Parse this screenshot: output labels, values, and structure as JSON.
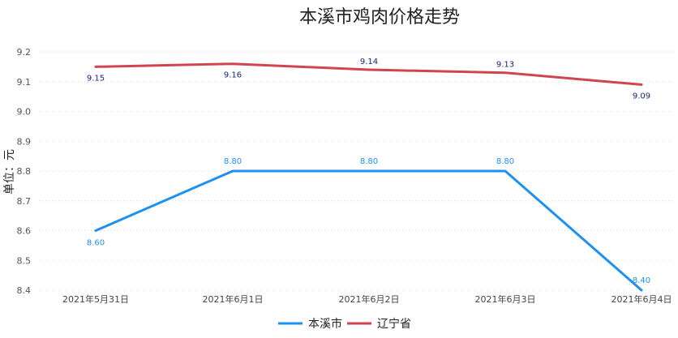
{
  "chart_data": {
    "type": "line",
    "title": "本溪市鸡肉价格走势",
    "ylabel": "单位：元",
    "xlabel": "",
    "ylim": [
      8.4,
      9.2
    ],
    "yticks": [
      "8.4",
      "8.5",
      "8.6",
      "8.7",
      "8.8",
      "8.9",
      "9.0",
      "9.1",
      "9.2"
    ],
    "categories": [
      "2021年5月31日",
      "2021年6月1日",
      "2021年6月2日",
      "2021年6月3日",
      "2021年6月4日"
    ],
    "grid": true,
    "legend_position": "bottom",
    "series": [
      {
        "name": "本溪市",
        "color": "#1e90f0",
        "label_color": "#1e90f0",
        "values": [
          8.6,
          8.8,
          8.8,
          8.8,
          8.4
        ],
        "labels": [
          "8.60",
          "8.80",
          "8.80",
          "8.80",
          "8.40"
        ]
      },
      {
        "name": "辽宁省",
        "color": "#d0454f",
        "label_color": "#1a237e",
        "values": [
          9.15,
          9.16,
          9.14,
          9.13,
          9.09
        ],
        "labels": [
          "9.15",
          "9.16",
          "9.14",
          "9.13",
          "9.09"
        ]
      }
    ]
  }
}
